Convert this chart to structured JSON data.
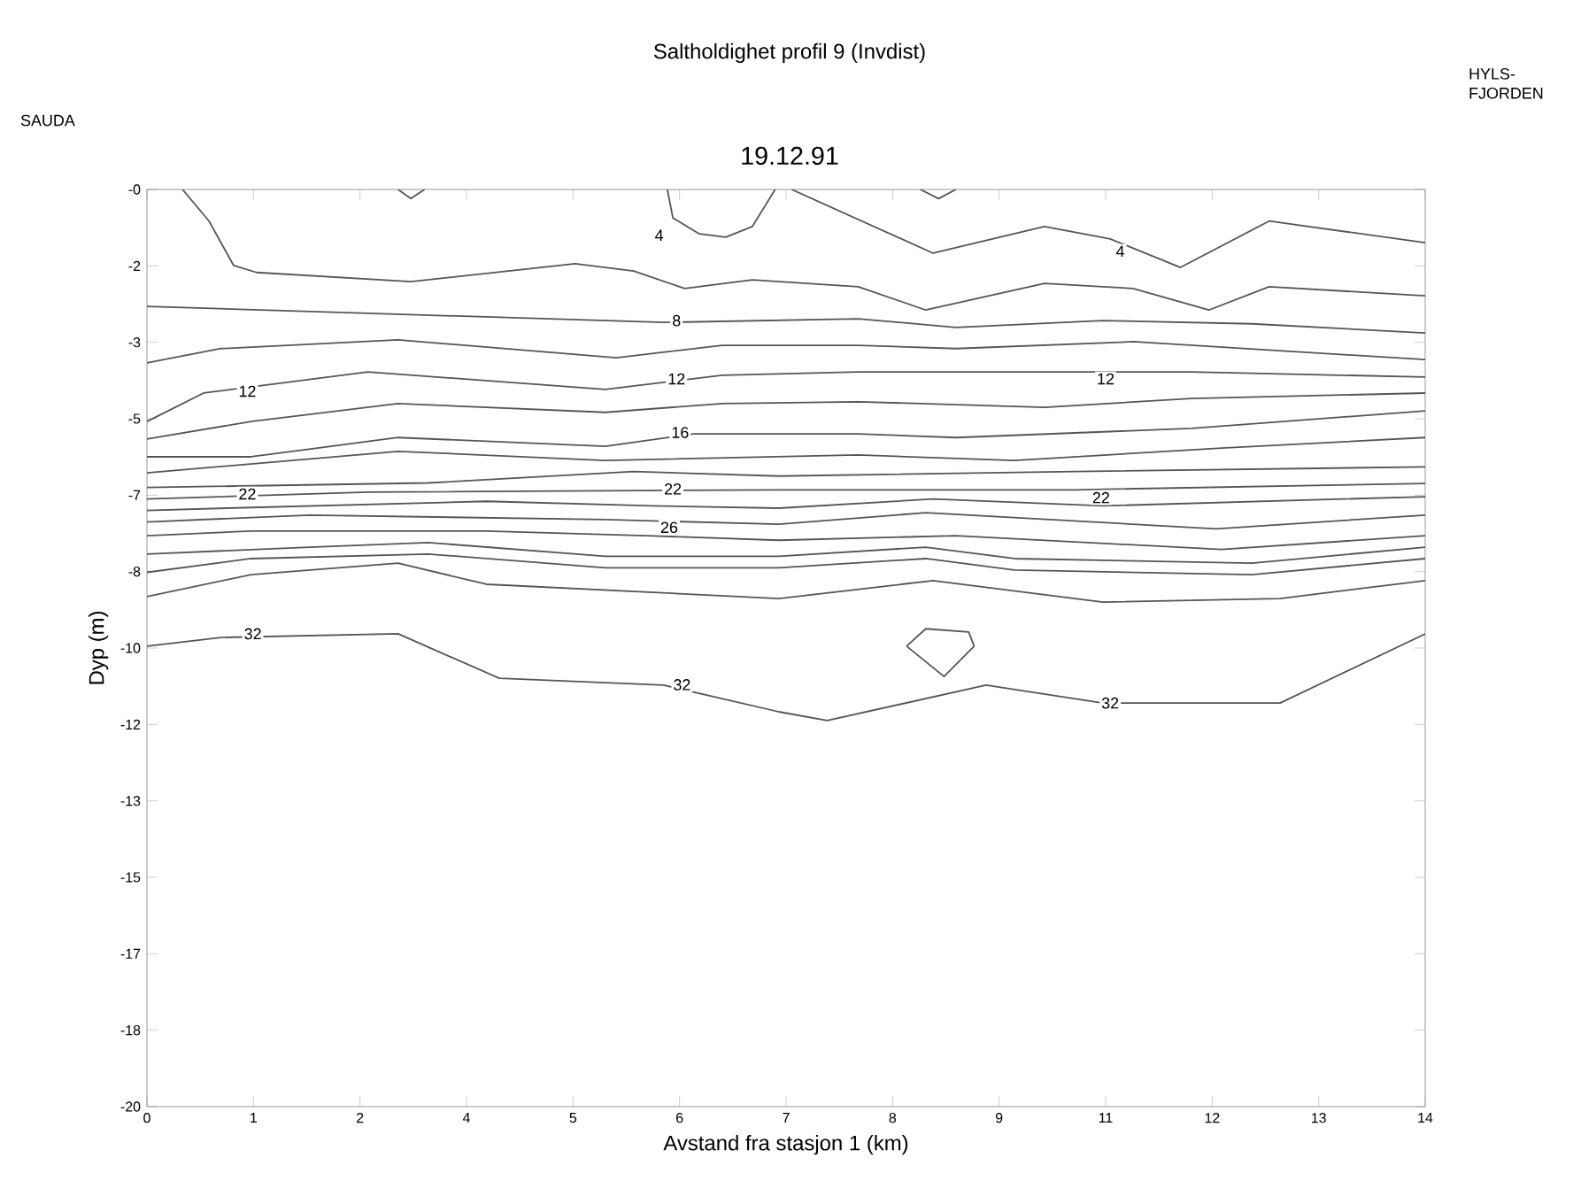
{
  "chart_data": {
    "type": "line",
    "title": "Saltholdighet profil 9 (Invdist)",
    "subtitle": "19.12.91",
    "xlabel": "Avstand fra stasjon 1 (km)",
    "ylabel": "Dyp (m)",
    "marker": "none",
    "line_style": "solid",
    "xlim": [
      0,
      14
    ],
    "ylim": [
      -20,
      0
    ],
    "xticks": [
      {
        "value": 0,
        "label": "0"
      },
      {
        "value": 1.1667,
        "label": "1"
      },
      {
        "value": 2.3333,
        "label": "2"
      },
      {
        "value": 3.5,
        "label": "4"
      },
      {
        "value": 4.6667,
        "label": "5"
      },
      {
        "value": 5.8333,
        "label": "6"
      },
      {
        "value": 7,
        "label": "7"
      },
      {
        "value": 8.1667,
        "label": "8"
      },
      {
        "value": 9.3333,
        "label": "9"
      },
      {
        "value": 10.5,
        "label": "11"
      },
      {
        "value": 11.6667,
        "label": "12"
      },
      {
        "value": 12.8333,
        "label": "13"
      },
      {
        "value": 14,
        "label": "14"
      }
    ],
    "yticks": [
      {
        "value": 0,
        "label": "-0"
      },
      {
        "value": -1.6667,
        "label": "-2"
      },
      {
        "value": -3.3333,
        "label": "-3"
      },
      {
        "value": -5,
        "label": "-5"
      },
      {
        "value": -6.6667,
        "label": "-7"
      },
      {
        "value": -8.3333,
        "label": "-8"
      },
      {
        "value": -10,
        "label": "-10"
      },
      {
        "value": -11.6667,
        "label": "-12"
      },
      {
        "value": -13.3333,
        "label": "-13"
      },
      {
        "value": -15,
        "label": "-15"
      },
      {
        "value": -16.6667,
        "label": "-17"
      },
      {
        "value": -18.3333,
        "label": "-18"
      },
      {
        "value": -20,
        "label": "-20"
      }
    ],
    "series": [
      {
        "color": "#555555",
        "x": [
          5.7,
          5.76,
          6.05,
          6.34,
          6.63,
          6.88
        ],
        "values": [
          0,
          -0.62,
          -0.97,
          -1.04,
          -0.81,
          0
        ]
      },
      {
        "color": "#555555",
        "x": [
          2.75,
          2.89,
          3.04
        ],
        "values": [
          0,
          -0.2,
          0
        ]
      },
      {
        "color": "#555555",
        "x": [
          8.47,
          8.67,
          8.86
        ],
        "values": [
          0,
          -0.2,
          0
        ]
      },
      {
        "color": "#555555",
        "x": [
          7.06,
          8.61,
          9.83,
          10.55,
          11.32,
          12.29,
          14
        ],
        "values": [
          0,
          -1.39,
          -0.81,
          -1.08,
          -1.7,
          -0.69,
          -1.16
        ]
      },
      {
        "color": "#555555",
        "x": [
          0.39,
          0.68,
          0.95,
          1.2,
          2.89,
          4.69,
          5.33,
          5.89,
          6.63,
          7.79,
          8.53,
          9.83,
          10.8,
          11.63,
          12.29,
          14
        ],
        "values": [
          0,
          -0.69,
          -1.66,
          -1.81,
          -2.01,
          -1.62,
          -1.78,
          -2.16,
          -1.97,
          -2.12,
          -2.63,
          -2.05,
          -2.16,
          -2.63,
          -2.12,
          -2.32
        ]
      },
      {
        "color": "#555555",
        "x": [
          0,
          2.42,
          5.66,
          7.79,
          8.86,
          10.47,
          12.1,
          14
        ],
        "values": [
          -2.55,
          -2.7,
          -2.9,
          -2.82,
          -3.01,
          -2.86,
          -2.93,
          -3.13
        ]
      },
      {
        "color": "#555555",
        "x": [
          0,
          0.81,
          2.75,
          5.14,
          6.3,
          7.79,
          8.86,
          10.8,
          14
        ],
        "values": [
          -3.78,
          -3.47,
          -3.28,
          -3.67,
          -3.4,
          -3.4,
          -3.47,
          -3.32,
          -3.71
        ]
      },
      {
        "color": "#555555",
        "x": [
          0,
          0.62,
          2.42,
          5.02,
          6.3,
          7.79,
          9.5,
          11.44,
          14
        ],
        "values": [
          -5.06,
          -4.44,
          -3.98,
          -4.36,
          -4.05,
          -3.98,
          -3.98,
          -3.98,
          -4.09
        ]
      },
      {
        "color": "#555555",
        "x": [
          0,
          1.14,
          2.75,
          5.02,
          6.3,
          7.79,
          9.83,
          11.44,
          14
        ],
        "values": [
          -5.44,
          -5.06,
          -4.67,
          -4.86,
          -4.67,
          -4.63,
          -4.75,
          -4.56,
          -4.44
        ]
      },
      {
        "color": "#555555",
        "x": [
          0,
          1.14,
          2.75,
          5.02,
          5.99,
          7.79,
          8.86,
          11.44,
          14
        ],
        "values": [
          -5.83,
          -5.83,
          -5.41,
          -5.6,
          -5.33,
          -5.33,
          -5.41,
          -5.21,
          -4.83
        ]
      },
      {
        "color": "#555555",
        "x": [
          0,
          2.75,
          5.02,
          7.79,
          9.5,
          11.77,
          14
        ],
        "values": [
          -6.18,
          -5.71,
          -5.91,
          -5.79,
          -5.91,
          -5.64,
          -5.41
        ]
      },
      {
        "color": "#555555",
        "x": [
          0,
          3.08,
          5.33,
          6.92,
          10.16,
          14
        ],
        "values": [
          -6.5,
          -6.4,
          -6.15,
          -6.25,
          -6.15,
          -6.05
        ]
      },
      {
        "color": "#555555",
        "x": [
          0,
          2.42,
          6.92,
          10.16,
          14
        ],
        "values": [
          -6.75,
          -6.6,
          -6.55,
          -6.55,
          -6.41
        ]
      },
      {
        "color": "#555555",
        "x": [
          0,
          0.87,
          3.72,
          5.53,
          6.92,
          8.61,
          10.47,
          14
        ],
        "values": [
          -7.0,
          -6.95,
          -6.8,
          -6.9,
          -6.95,
          -6.75,
          -6.9,
          -6.7
        ]
      },
      {
        "color": "#555555",
        "x": [
          0,
          1.78,
          5.02,
          6.92,
          8.53,
          11.71,
          14
        ],
        "values": [
          -7.25,
          -7.1,
          -7.2,
          -7.3,
          -7.05,
          -7.4,
          -7.1
        ]
      },
      {
        "color": "#555555",
        "x": [
          0,
          1.14,
          3.72,
          5.47,
          6.92,
          8.86,
          11.77,
          14
        ],
        "values": [
          -7.55,
          -7.45,
          -7.45,
          -7.55,
          -7.65,
          -7.55,
          -7.85,
          -7.55
        ]
      },
      {
        "color": "#555555",
        "x": [
          0,
          1.78,
          3.08,
          5.02,
          6.92,
          8.53,
          9.5,
          12.1,
          14
        ],
        "values": [
          -7.95,
          -7.8,
          -7.7,
          -8.0,
          -8.0,
          -7.8,
          -8.05,
          -8.15,
          -7.8
        ]
      },
      {
        "color": "#555555",
        "x": [
          0,
          1.14,
          3.08,
          5.02,
          6.92,
          8.53,
          9.5,
          12.1,
          14
        ],
        "values": [
          -8.35,
          -8.05,
          -7.95,
          -8.25,
          -8.25,
          -8.05,
          -8.3,
          -8.4,
          -8.05
        ]
      },
      {
        "color": "#555555",
        "x": [
          0,
          1.14,
          2.75,
          3.72,
          6.92,
          8.61,
          10.47,
          12.41,
          14
        ],
        "values": [
          -8.88,
          -8.4,
          -8.15,
          -8.61,
          -8.92,
          -8.53,
          -9.0,
          -8.92,
          -8.53
        ]
      },
      {
        "color": "#555555",
        "x": [
          0,
          0.81,
          2.75,
          3.86,
          5.66,
          6.92,
          7.45,
          9.19,
          10.47,
          12.41,
          14
        ],
        "values": [
          -9.96,
          -9.77,
          -9.69,
          -10.66,
          -10.81,
          -11.39,
          -11.58,
          -10.81,
          -11.2,
          -11.2,
          -9.69
        ]
      },
      {
        "color": "#555555",
        "x": [
          8.32,
          8.53,
          9.0,
          9.06
        ],
        "values": [
          -9.96,
          -9.58,
          -9.65,
          -9.96
        ]
      },
      {
        "color": "#555555",
        "x": [
          8.32,
          8.73,
          9.06
        ],
        "values": [
          -9.96,
          -10.62,
          -9.96
        ]
      }
    ],
    "annotations": [
      "SAUDA",
      "HYLS-FJORDEN",
      {
        "text": "4",
        "x": 5.61,
        "y": -1.0
      },
      {
        "text": "4",
        "x": 10.66,
        "y": -1.35
      },
      {
        "text": "8",
        "x": 5.8,
        "y": -2.86
      },
      {
        "text": "12",
        "x": 1.1,
        "y": -4.4
      },
      {
        "text": "12",
        "x": 5.8,
        "y": -4.13
      },
      {
        "text": "12",
        "x": 10.5,
        "y": -4.13
      },
      {
        "text": "16",
        "x": 5.84,
        "y": -5.3
      },
      {
        "text": "22",
        "x": 1.1,
        "y": -6.64
      },
      {
        "text": "22",
        "x": 5.76,
        "y": -6.53
      },
      {
        "text": "22",
        "x": 10.45,
        "y": -6.72
      },
      {
        "text": "26",
        "x": 5.72,
        "y": -7.37
      },
      {
        "text": "32",
        "x": 1.16,
        "y": -9.69
      },
      {
        "text": "32",
        "x": 5.86,
        "y": -10.8
      },
      {
        "text": "32",
        "x": 10.55,
        "y": -11.2
      }
    ]
  }
}
